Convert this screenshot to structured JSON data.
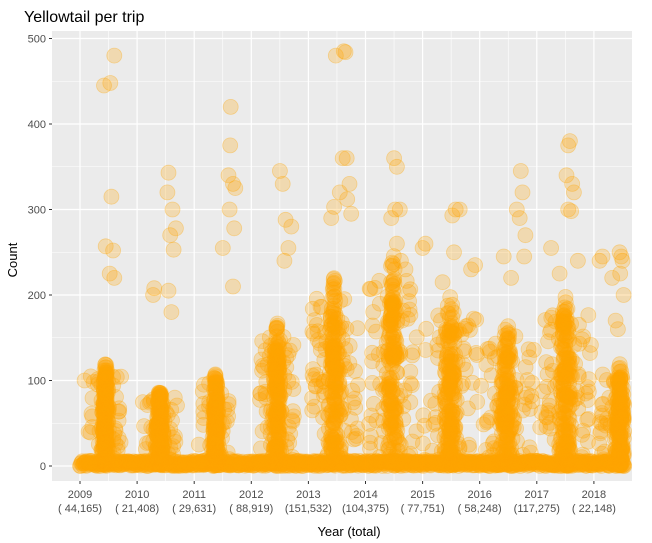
{
  "chart_data": {
    "type": "scatter",
    "title": "Yellowtail per trip",
    "xlabel": "Year (total)",
    "ylabel": "Count",
    "ylim": [
      0,
      500
    ],
    "xlim": [
      2008.85,
      2018.6
    ],
    "y_ticks": [
      0,
      100,
      200,
      300,
      400,
      500
    ],
    "grid": true,
    "legend": "none",
    "x_ticks": [
      {
        "year": 2009,
        "label": "2009",
        "total": "( 44,165)"
      },
      {
        "year": 2010,
        "label": "2010",
        "total": "( 21,408)"
      },
      {
        "year": 2011,
        "label": "2011",
        "total": "( 29,631)"
      },
      {
        "year": 2012,
        "label": "2012",
        "total": "( 88,919)"
      },
      {
        "year": 2013,
        "label": "2013",
        "total": "(151,532)"
      },
      {
        "year": 2014,
        "label": "2014",
        "total": "(104,375)"
      },
      {
        "year": 2015,
        "label": "2015",
        "total": "( 77,751)"
      },
      {
        "year": 2016,
        "label": "2016",
        "total": "( 58,248)"
      },
      {
        "year": 2017,
        "label": "2017",
        "total": "(117,275)"
      },
      {
        "year": 2018,
        "label": "2018",
        "total": "( 22,148)"
      }
    ],
    "seasons": [
      {
        "center": 2009.45,
        "width": 0.09,
        "height": 120,
        "sparse": 60
      },
      {
        "center": 2010.4,
        "width": 0.1,
        "height": 90,
        "sparse": 40
      },
      {
        "center": 2011.38,
        "width": 0.08,
        "height": 110,
        "sparse": 40
      },
      {
        "center": 2012.45,
        "width": 0.1,
        "height": 170,
        "sparse": 70
      },
      {
        "center": 2013.45,
        "width": 0.14,
        "height": 220,
        "sparse": 90
      },
      {
        "center": 2014.48,
        "width": 0.14,
        "height": 250,
        "sparse": 80
      },
      {
        "center": 2015.48,
        "width": 0.16,
        "height": 200,
        "sparse": 70
      },
      {
        "center": 2016.48,
        "width": 0.16,
        "height": 170,
        "sparse": 60
      },
      {
        "center": 2017.5,
        "width": 0.15,
        "height": 200,
        "sparse": 80
      },
      {
        "center": 2018.45,
        "width": 0.12,
        "height": 120,
        "sparse": 50
      }
    ],
    "outliers": [
      {
        "x": 2009.08,
        "y": 100
      },
      {
        "x": 2009.15,
        "y": 40
      },
      {
        "x": 2009.42,
        "y": 445
      },
      {
        "x": 2009.53,
        "y": 448
      },
      {
        "x": 2009.6,
        "y": 480
      },
      {
        "x": 2009.55,
        "y": 315
      },
      {
        "x": 2009.45,
        "y": 257
      },
      {
        "x": 2009.58,
        "y": 252
      },
      {
        "x": 2009.52,
        "y": 225
      },
      {
        "x": 2009.6,
        "y": 220
      },
      {
        "x": 2010.28,
        "y": 200
      },
      {
        "x": 2010.3,
        "y": 208
      },
      {
        "x": 2010.55,
        "y": 343
      },
      {
        "x": 2010.53,
        "y": 320
      },
      {
        "x": 2010.62,
        "y": 300
      },
      {
        "x": 2010.68,
        "y": 278
      },
      {
        "x": 2010.64,
        "y": 253
      },
      {
        "x": 2010.58,
        "y": 270
      },
      {
        "x": 2010.55,
        "y": 205
      },
      {
        "x": 2010.6,
        "y": 180
      },
      {
        "x": 2011.08,
        "y": 25
      },
      {
        "x": 2011.35,
        "y": 103
      },
      {
        "x": 2011.5,
        "y": 255
      },
      {
        "x": 2011.6,
        "y": 340
      },
      {
        "x": 2011.63,
        "y": 375
      },
      {
        "x": 2011.64,
        "y": 420
      },
      {
        "x": 2011.68,
        "y": 330
      },
      {
        "x": 2011.62,
        "y": 300
      },
      {
        "x": 2011.72,
        "y": 325
      },
      {
        "x": 2011.7,
        "y": 278
      },
      {
        "x": 2011.68,
        "y": 210
      },
      {
        "x": 2012.5,
        "y": 345
      },
      {
        "x": 2012.55,
        "y": 330
      },
      {
        "x": 2012.6,
        "y": 288
      },
      {
        "x": 2012.65,
        "y": 255
      },
      {
        "x": 2012.7,
        "y": 280
      },
      {
        "x": 2012.58,
        "y": 240
      },
      {
        "x": 2013.48,
        "y": 480
      },
      {
        "x": 2013.62,
        "y": 485
      },
      {
        "x": 2013.65,
        "y": 484
      },
      {
        "x": 2013.6,
        "y": 360
      },
      {
        "x": 2013.67,
        "y": 360
      },
      {
        "x": 2013.72,
        "y": 330
      },
      {
        "x": 2013.68,
        "y": 312
      },
      {
        "x": 2013.45,
        "y": 303
      },
      {
        "x": 2013.4,
        "y": 290
      },
      {
        "x": 2013.75,
        "y": 295
      },
      {
        "x": 2013.55,
        "y": 320
      },
      {
        "x": 2014.5,
        "y": 360
      },
      {
        "x": 2014.55,
        "y": 350
      },
      {
        "x": 2014.52,
        "y": 300
      },
      {
        "x": 2014.6,
        "y": 300
      },
      {
        "x": 2014.45,
        "y": 290
      },
      {
        "x": 2014.55,
        "y": 260
      },
      {
        "x": 2014.62,
        "y": 240
      },
      {
        "x": 2014.7,
        "y": 230
      },
      {
        "x": 2015.0,
        "y": 255
      },
      {
        "x": 2015.05,
        "y": 260
      },
      {
        "x": 2015.52,
        "y": 293
      },
      {
        "x": 2015.58,
        "y": 300
      },
      {
        "x": 2015.65,
        "y": 300
      },
      {
        "x": 2015.55,
        "y": 250
      },
      {
        "x": 2015.35,
        "y": 215
      },
      {
        "x": 2015.85,
        "y": 230
      },
      {
        "x": 2015.92,
        "y": 235
      },
      {
        "x": 2016.42,
        "y": 245
      },
      {
        "x": 2016.55,
        "y": 220
      },
      {
        "x": 2016.65,
        "y": 300
      },
      {
        "x": 2016.7,
        "y": 290
      },
      {
        "x": 2016.72,
        "y": 345
      },
      {
        "x": 2016.75,
        "y": 320
      },
      {
        "x": 2016.8,
        "y": 270
      },
      {
        "x": 2016.78,
        "y": 245
      },
      {
        "x": 2017.25,
        "y": 255
      },
      {
        "x": 2017.4,
        "y": 225
      },
      {
        "x": 2017.52,
        "y": 340
      },
      {
        "x": 2017.55,
        "y": 375
      },
      {
        "x": 2017.58,
        "y": 380
      },
      {
        "x": 2017.62,
        "y": 330
      },
      {
        "x": 2017.65,
        "y": 320
      },
      {
        "x": 2017.55,
        "y": 300
      },
      {
        "x": 2017.6,
        "y": 298
      },
      {
        "x": 2017.72,
        "y": 240
      },
      {
        "x": 2018.1,
        "y": 240
      },
      {
        "x": 2018.15,
        "y": 245
      },
      {
        "x": 2018.32,
        "y": 220
      },
      {
        "x": 2018.45,
        "y": 250
      },
      {
        "x": 2018.48,
        "y": 245
      },
      {
        "x": 2018.5,
        "y": 240
      },
      {
        "x": 2018.46,
        "y": 225
      },
      {
        "x": 2018.52,
        "y": 200
      },
      {
        "x": 2018.42,
        "y": 160
      },
      {
        "x": 2018.38,
        "y": 170
      }
    ],
    "point_color": "#ffa500",
    "point_opacity": 0.25
  },
  "colors": {
    "panel_background": "#ebebeb",
    "gridline": "#ffffff",
    "point": "#ffa500"
  }
}
